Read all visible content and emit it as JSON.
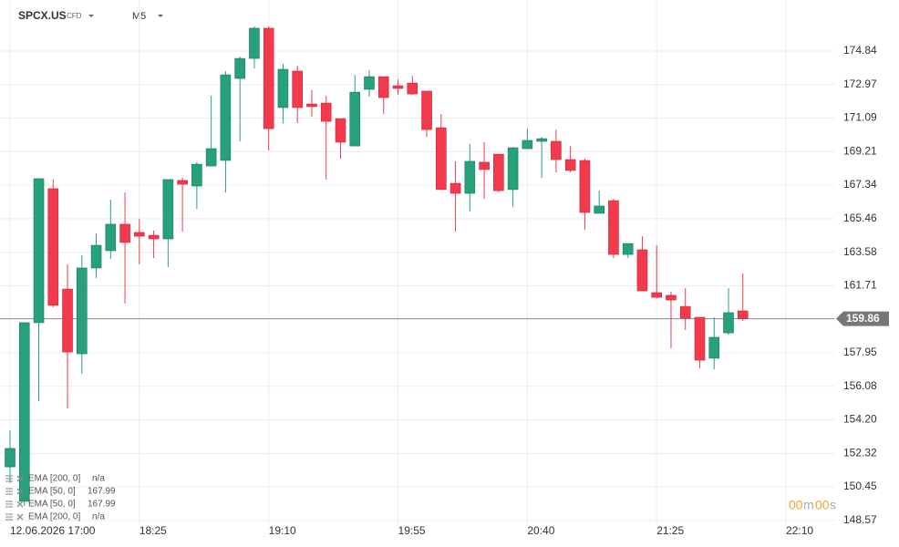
{
  "chart_data": {
    "type": "candlestick",
    "title": "SPCX.US",
    "instrument_type": "CFD",
    "timeframe": "M5",
    "up_color": "#26a17b",
    "down_color": "#f23a4c",
    "open": [
      151.57,
      149.64,
      159.64,
      167.14,
      161.52,
      157.9,
      162.7,
      163.67,
      165.15,
      164.69,
      164.53,
      164.33,
      167.6,
      167.29,
      168.41,
      168.72,
      173.31,
      174.43,
      176.12,
      171.68,
      173.72,
      171.88,
      171.93,
      171.06,
      169.53,
      172.7,
      173.41,
      172.9,
      173.05,
      172.6,
      170.55,
      167.44,
      166.88,
      168.62,
      169.07,
      167.09,
      169.38,
      169.79,
      169.79,
      168.77,
      168.72,
      165.76,
      166.47,
      163.46,
      163.72,
      161.32,
      161.17,
      160.55,
      159.94,
      157.65,
      159.07,
      160.3
    ],
    "high": [
      153.62,
      159.64,
      167.7,
      167.65,
      162.9,
      163.41,
      164.64,
      166.52,
      166.93,
      165.45,
      164.79,
      167.65,
      167.75,
      168.62,
      172.34,
      173.72,
      174.53,
      176.22,
      176.22,
      174.13,
      174.02,
      172.65,
      172.34,
      171.06,
      173.51,
      173.77,
      173.41,
      173.26,
      173.46,
      172.6,
      171.32,
      168.67,
      169.64,
      169.74,
      169.07,
      169.48,
      170.5,
      170.04,
      170.45,
      169.53,
      168.82,
      167.03,
      166.57,
      164.07,
      164.48,
      163.97,
      161.37,
      161.57,
      159.94,
      159.94,
      161.57,
      162.39
    ],
    "low": [
      150.66,
      149.38,
      155.25,
      160.5,
      154.84,
      156.78,
      162.14,
      163.21,
      160.71,
      162.9,
      163.26,
      162.75,
      164.74,
      166.01,
      168.41,
      166.93,
      169.79,
      173.87,
      169.28,
      170.81,
      170.81,
      171.17,
      167.65,
      168.82,
      169.53,
      172.29,
      171.32,
      172.39,
      172.39,
      170.04,
      167.09,
      164.74,
      165.86,
      166.57,
      166.93,
      166.12,
      169.38,
      167.75,
      168.05,
      168.05,
      164.84,
      165.76,
      163.26,
      163.26,
      161.42,
      161.01,
      158.21,
      159.23,
      157.09,
      157.03,
      158.97,
      159.74
    ],
    "close": [
      152.6,
      159.64,
      167.7,
      160.61,
      158.0,
      162.7,
      163.97,
      165.15,
      164.13,
      164.48,
      164.33,
      167.65,
      167.39,
      168.51,
      169.38,
      173.51,
      174.43,
      176.12,
      170.5,
      173.82,
      171.68,
      171.73,
      170.91,
      169.74,
      172.54,
      173.41,
      172.24,
      172.75,
      172.44,
      170.45,
      167.09,
      166.88,
      168.67,
      168.21,
      167.03,
      169.43,
      169.84,
      169.94,
      168.77,
      168.16,
      165.81,
      166.17,
      163.46,
      164.07,
      161.42,
      161.06,
      160.91,
      159.89,
      157.54,
      158.82,
      160.2,
      159.86
    ],
    "ylim": [
      148.36,
      177.7
    ],
    "yticks": [
      174.84,
      172.97,
      171.09,
      169.21,
      167.34,
      165.46,
      163.58,
      161.71,
      157.95,
      156.08,
      {
        "value": 154.2,
        "label": "154.20"
      },
      152.32,
      150.45,
      148.57
    ],
    "xticks": [
      "12.06.2026 17:00",
      "18:25",
      "19:10",
      "19:55",
      "20:40",
      "21:25",
      "22:10"
    ],
    "grid": true,
    "current_price": 159.86,
    "indicators": [
      {
        "name": "EMA [200, 0]",
        "value": "n/a"
      },
      {
        "name": "EMA [50, 0]",
        "value": 167.99
      },
      {
        "name": "EMA [50, 0]",
        "value": 167.99
      },
      {
        "name": "EMA [200, 0]",
        "value": "n/a"
      }
    ],
    "countdown": {
      "minutes": "00",
      "minutes_unit": "m",
      "seconds": "00",
      "seconds_unit": "s"
    }
  }
}
